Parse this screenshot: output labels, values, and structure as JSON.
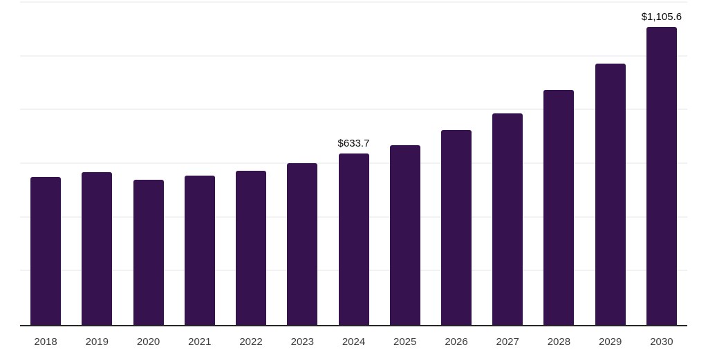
{
  "chart_data": {
    "type": "bar",
    "title": "",
    "xlabel": "",
    "ylabel": "",
    "categories": [
      "2018",
      "2019",
      "2020",
      "2021",
      "2022",
      "2023",
      "2024",
      "2025",
      "2026",
      "2027",
      "2028",
      "2029",
      "2030"
    ],
    "values": [
      547,
      565,
      537,
      552,
      570,
      598,
      633.7,
      665,
      722,
      783,
      870,
      968,
      1105.6
    ],
    "labeled_points": [
      {
        "category": "2024",
        "label": "$633.7"
      },
      {
        "category": "2030",
        "label": "$1,105.6"
      }
    ],
    "ylim": [
      0,
      1200
    ],
    "gridline_values": [
      200,
      400,
      600,
      800,
      1000,
      1200
    ],
    "grid": "horizontal-only",
    "legend": "none",
    "y_axis_labels_visible": false
  },
  "colors": {
    "bar": "#36124e",
    "grid": "#f2f2f4",
    "axis": "#262626",
    "ticklabel": "#3d3d3d",
    "datalabel": "#0a0a0a",
    "background": "#ffffff"
  }
}
